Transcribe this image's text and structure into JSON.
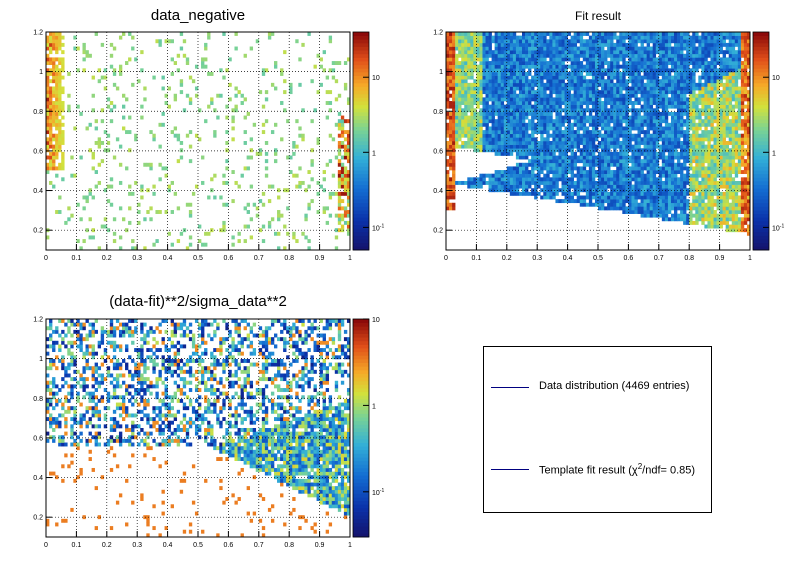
{
  "chart_data": [
    {
      "type": "heatmap",
      "title": "data_negative",
      "xlabel": "",
      "ylabel": "",
      "xlim": [
        0,
        1
      ],
      "ylim": [
        0.1,
        1.2
      ],
      "x_ticks": [
        "0",
        "0.1",
        "0.2",
        "0.3",
        "0.4",
        "0.5",
        "0.6",
        "0.7",
        "0.8",
        "0.9",
        "1"
      ],
      "y_ticks": [
        "0.2",
        "0.4",
        "0.6",
        "0.8",
        "1",
        "1.2"
      ],
      "colorbar": {
        "scale": "log",
        "ticks": [
          "10^-1",
          "1",
          "10"
        ],
        "range": [
          0.05,
          40
        ]
      },
      "grid": true,
      "pattern": "sparse uniform entries with dense bands near x=0 and x=1",
      "seed": 11
    },
    {
      "type": "heatmap",
      "title": "Fit result",
      "xlabel": "",
      "ylabel": "",
      "xlim": [
        0,
        1
      ],
      "ylim": [
        0.1,
        1.2
      ],
      "x_ticks": [
        "0",
        "0.1",
        "0.2",
        "0.3",
        "0.4",
        "0.5",
        "0.6",
        "0.7",
        "0.8",
        "0.9",
        "1"
      ],
      "y_ticks": [
        "0.2",
        "0.4",
        "0.6",
        "0.8",
        "1",
        "1.2"
      ],
      "colorbar": {
        "scale": "log",
        "ticks": [
          "10^-1",
          "1",
          "10"
        ],
        "range": [
          0.05,
          40
        ]
      },
      "grid": true,
      "pattern": "upper band and lower wedge that cross at x=1, intense edges at x=0 and x=1",
      "seed": 23
    },
    {
      "type": "heatmap",
      "title": "(data-fit)**2/sigma_data**2",
      "xlabel": "",
      "ylabel": "",
      "xlim": [
        0,
        1
      ],
      "ylim": [
        0.1,
        1.2
      ],
      "x_ticks": [
        "0",
        "0.1",
        "0.2",
        "0.3",
        "0.4",
        "0.5",
        "0.6",
        "0.7",
        "0.8",
        "0.9",
        "1"
      ],
      "y_ticks": [
        "0.2",
        "0.4",
        "0.6",
        "0.8",
        "1",
        "1.2"
      ],
      "colorbar": {
        "scale": "log",
        "ticks": [
          "10^-1",
          "1",
          "10"
        ],
        "range": [
          0.03,
          10
        ]
      },
      "grid": true,
      "pattern": "scattered residuals over the upper band and a dense wedge from x=0.55 to x=1",
      "seed": 37
    }
  ],
  "legend": {
    "entries": [
      {
        "label": "Data distribution (4469 entries)",
        "color": "#000080"
      },
      {
        "label_pre": "Template fit result (χ",
        "label_sup": "2",
        "label_post": "/ndf= 0.85)",
        "color": "#000080"
      }
    ]
  }
}
